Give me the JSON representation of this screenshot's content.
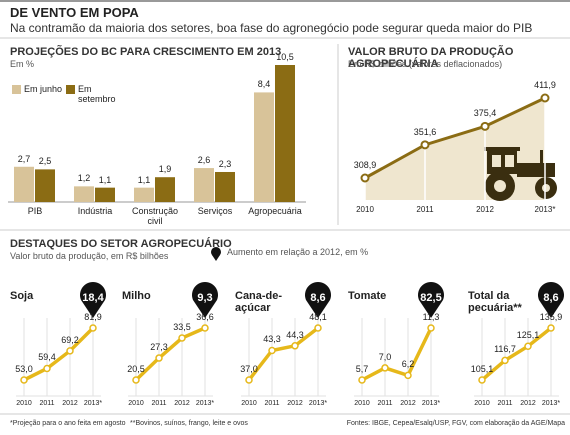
{
  "header": {
    "title": "DE VENTO EM POPA",
    "subtitle": "Na contramão da maioria dos setores, boa fase do agronegócio pode segurar queda maior do PIB"
  },
  "chart_data": [
    {
      "type": "bar",
      "title": "PROJEÇÕES DO BC PARA CRESCIMENTO EM 2013",
      "subtitle": "Em %",
      "categories": [
        "PIB",
        "Indústria",
        "Construção civil",
        "Serviços",
        "Agropecuária"
      ],
      "series": [
        {
          "name": "Em junho",
          "color": "#d8c399",
          "values": [
            2.7,
            1.2,
            1.1,
            2.6,
            8.4
          ],
          "value_labels": [
            "2,7",
            "1,2",
            "1,1",
            "2,6",
            "8,4"
          ]
        },
        {
          "name": "Em setembro",
          "color": "#8b6c14",
          "values": [
            2.5,
            1.1,
            1.9,
            2.3,
            10.5
          ],
          "value_labels": [
            "2,5",
            "1,1",
            "1,9",
            "2,3",
            "10,5"
          ]
        }
      ]
    },
    {
      "type": "area",
      "title": "VALOR BRUTO DA PRODUÇÃO AGROPECUÁRIA",
      "subtitle": "Em R$ bilhões (valores deflacionados)",
      "categories": [
        "2010",
        "2011",
        "2012",
        "2013*"
      ],
      "values": [
        308.9,
        351.6,
        375.4,
        411.9
      ],
      "value_labels": [
        "308,9",
        "351,6",
        "375,4",
        "411,9"
      ],
      "color": "#8b6c14"
    },
    {
      "type": "line",
      "title": "Soja",
      "categories": [
        "2010",
        "2011",
        "2012",
        "2013*"
      ],
      "values": [
        53.0,
        59.4,
        69.2,
        81.9
      ],
      "value_labels": [
        "53,0",
        "59,4",
        "69,2",
        "81,9"
      ],
      "color": "#e6b81a",
      "change": 18.4,
      "change_label": "18,4"
    },
    {
      "type": "line",
      "title": "Milho",
      "categories": [
        "2010",
        "2011",
        "2012",
        "2013*"
      ],
      "values": [
        20.5,
        27.3,
        33.5,
        36.6
      ],
      "value_labels": [
        "20,5",
        "27,3",
        "33,5",
        "36,6"
      ],
      "color": "#e6b81a",
      "change": 9.3,
      "change_label": "9,3"
    },
    {
      "type": "line",
      "title": "Cana-de-açúcar",
      "categories": [
        "2010",
        "2011",
        "2012",
        "2013*"
      ],
      "values": [
        37.0,
        43.3,
        44.3,
        48.1
      ],
      "value_labels": [
        "37,0",
        "43,3",
        "44,3",
        "48,1"
      ],
      "color": "#e6b81a",
      "change": 8.6,
      "change_label": "8,6"
    },
    {
      "type": "line",
      "title": "Tomate",
      "categories": [
        "2010",
        "2011",
        "2012",
        "2013*"
      ],
      "values": [
        5.7,
        7.0,
        6.2,
        11.3
      ],
      "value_labels": [
        "5,7",
        "7,0",
        "6,2",
        "11,3"
      ],
      "color": "#e6b81a",
      "change": 82.5,
      "change_label": "82,5"
    },
    {
      "type": "line",
      "title": "Total da pecuária**",
      "categories": [
        "2010",
        "2011",
        "2012",
        "2013*"
      ],
      "values": [
        105.1,
        116.7,
        125.1,
        135.9
      ],
      "value_labels": [
        "105,1",
        "116,7",
        "125,1",
        "135,9"
      ],
      "color": "#e6b81a",
      "change": 8.6,
      "change_label": "8,6"
    }
  ],
  "section": {
    "title": "DESTAQUES DO SETOR AGROPECUÁRIO",
    "subtitle": "Valor bruto da produção, em R$ bilhões",
    "legend": "Aumento em relação a 2012, em %"
  },
  "footer": {
    "notes": [
      "*Projeção para o ano feita em agosto",
      "**Bovinos, suínos, frango, leite e ovos"
    ],
    "source": "Fontes: IBGE, Cepea/Esalq/USP, FGV, com elaboração da AGE/Mapa"
  }
}
